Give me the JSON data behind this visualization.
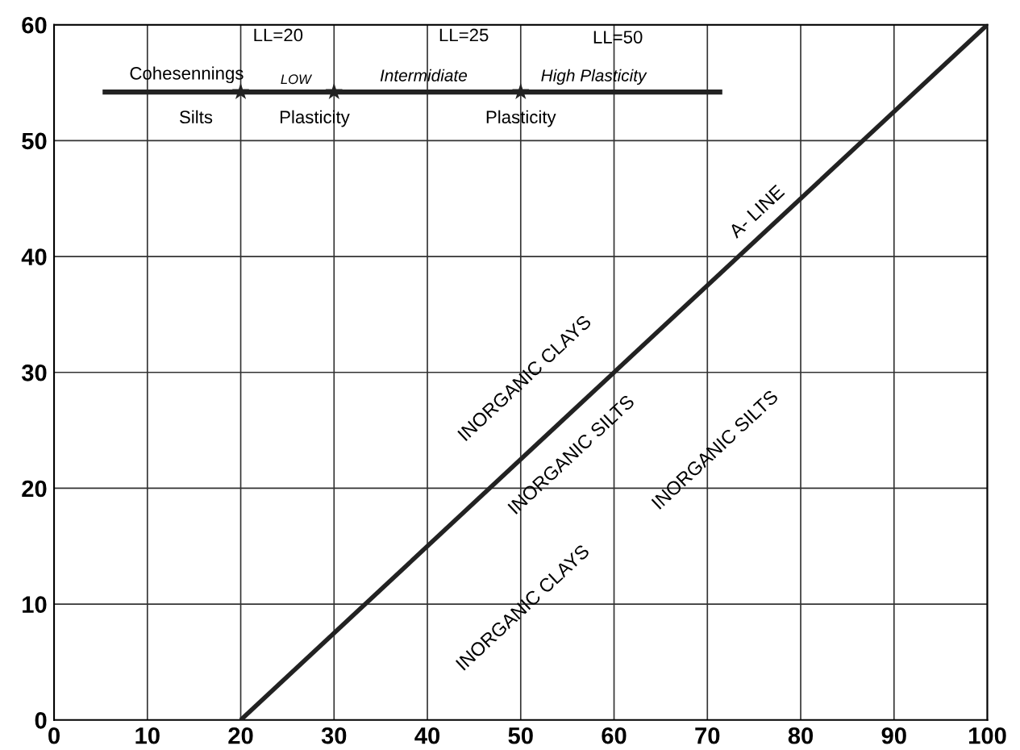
{
  "chart_data": {
    "type": "line",
    "xlim": [
      0,
      100
    ],
    "ylim": [
      0,
      60
    ],
    "xticks": [
      0,
      10,
      20,
      30,
      40,
      50,
      60,
      70,
      80,
      90,
      100
    ],
    "yticks": [
      0,
      10,
      20,
      30,
      40,
      50,
      60
    ],
    "grid": true,
    "legend": false,
    "series": [
      {
        "color": "#222222",
        "x": [
          20,
          100
        ],
        "values": [
          0,
          60
        ],
        "marker": "none",
        "line_style": "solid"
      },
      {
        "color": "#222222",
        "x": [
          5.2,
          71.6
        ],
        "values": [
          54.2,
          54.2
        ],
        "marker": "none",
        "line_style": "solid"
      },
      {
        "type": "scatter",
        "color": "#222222",
        "x": [
          20,
          30,
          50
        ],
        "values": [
          54.2,
          54.2,
          54.2
        ],
        "marker": "star"
      }
    ],
    "annotations": [
      "LL=20",
      "LL=25",
      "LL=50",
      "Cohesennings",
      "LOW",
      "Intermidiate",
      "High Plasticity",
      "Silts",
      "Plasticity",
      "Plasticity",
      "A- LINE",
      "INORGANIC CLAYS",
      "INORGANIC SILTS",
      "INORGANIC SILTS",
      "INORGANIC CLAYS"
    ]
  }
}
